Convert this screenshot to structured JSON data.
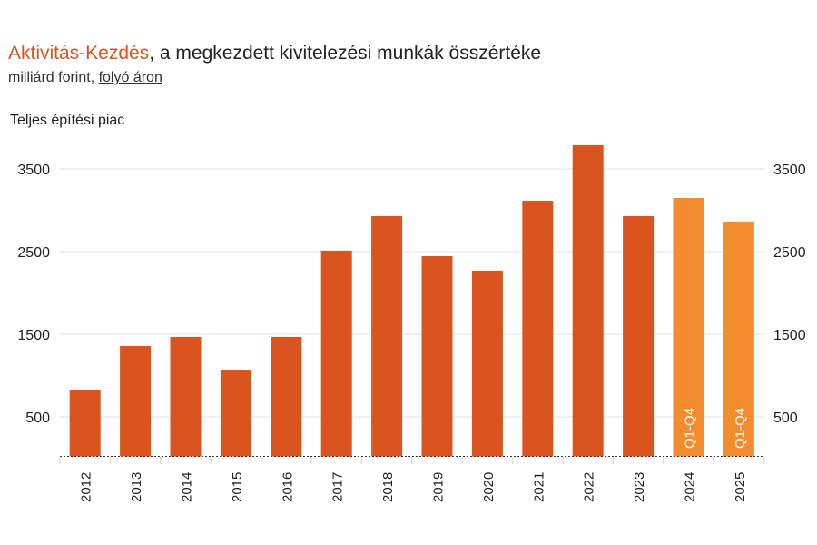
{
  "chart_data": {
    "type": "bar",
    "title_highlight": "Aktivitás-Kezdés",
    "title_rest": ", a megkezdett kivitelezési munkák összértéke",
    "subtitle_plain": "milliárd forint, ",
    "subtitle_link": "folyó áron",
    "panel_label": "Teljes építési piac",
    "categories": [
      "2012",
      "2013",
      "2014",
      "2015",
      "2016",
      "2017",
      "2018",
      "2019",
      "2020",
      "2021",
      "2022",
      "2023",
      "2024",
      "2025"
    ],
    "values": [
      830,
      1357,
      1467,
      1071,
      1467,
      2511,
      2929,
      2445,
      2269,
      3115,
      3786,
      2929,
      3148,
      2863
    ],
    "bar_labels": [
      "",
      "",
      "",
      "",
      "",
      "",
      "",
      "",
      "",
      "",
      "",
      "",
      "Q1-Q4",
      "Q1-Q4"
    ],
    "highlighted": [
      false,
      false,
      false,
      false,
      false,
      false,
      false,
      false,
      false,
      false,
      false,
      false,
      true,
      true
    ],
    "yticks": [
      500,
      1500,
      2500,
      3500
    ],
    "ylim": [
      0,
      3900
    ],
    "grid": true,
    "colors": {
      "bar": "#d9541f",
      "highlight": "#f28c2e",
      "grid": "#ebebeb"
    }
  }
}
